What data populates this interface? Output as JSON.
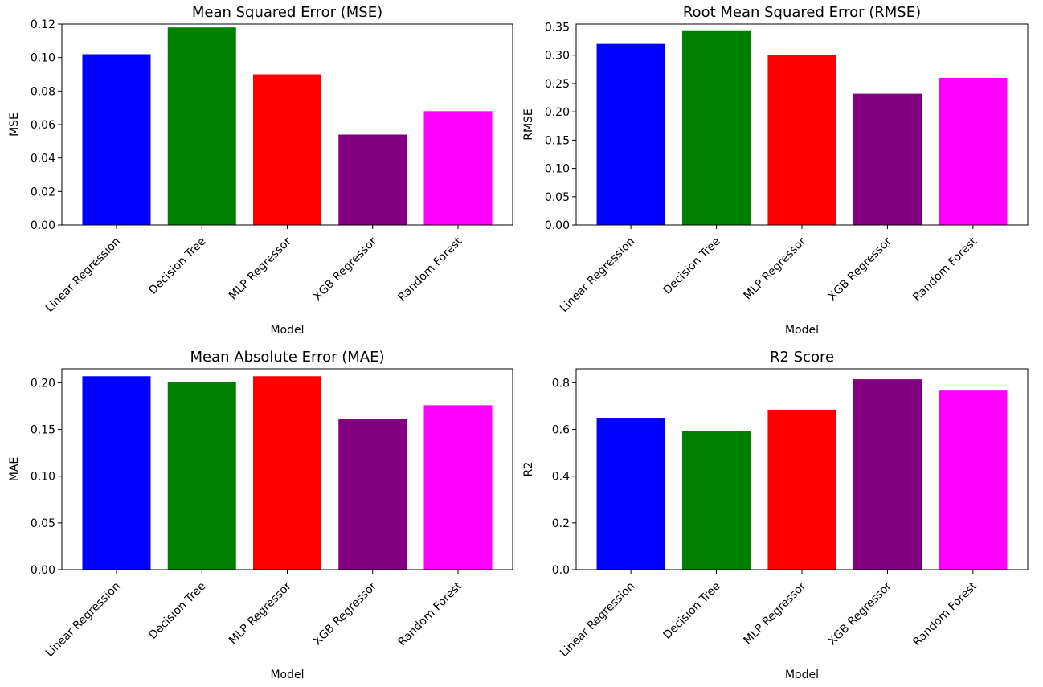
{
  "chart_data": [
    {
      "type": "bar",
      "title": "Mean Squared Error (MSE)",
      "xlabel": "Model",
      "ylabel": "MSE",
      "categories": [
        "Linear Regression",
        "Decision Tree",
        "MLP Regressor",
        "XGB Regressor",
        "Random Forest"
      ],
      "values": [
        0.102,
        0.118,
        0.09,
        0.054,
        0.068
      ],
      "colors": [
        "#0000ff",
        "#008000",
        "#ff0000",
        "#800080",
        "#ff00ff"
      ],
      "ylim": [
        0,
        0.12
      ],
      "yticks": [
        "0.00",
        "0.02",
        "0.04",
        "0.06",
        "0.08",
        "0.10",
        "0.12"
      ],
      "ytick_values": [
        0,
        0.02,
        0.04,
        0.06,
        0.08,
        0.1,
        0.12
      ],
      "grid": false,
      "legend": "none"
    },
    {
      "type": "bar",
      "title": "Root Mean Squared Error (RMSE)",
      "xlabel": "Model",
      "ylabel": "RMSE",
      "categories": [
        "Linear Regression",
        "Decision Tree",
        "MLP Regressor",
        "XGB Regressor",
        "Random Forest"
      ],
      "values": [
        0.32,
        0.344,
        0.3,
        0.232,
        0.26
      ],
      "colors": [
        "#0000ff",
        "#008000",
        "#ff0000",
        "#800080",
        "#ff00ff"
      ],
      "ylim": [
        0,
        0.355
      ],
      "yticks": [
        "0.00",
        "0.05",
        "0.10",
        "0.15",
        "0.20",
        "0.25",
        "0.30",
        "0.35"
      ],
      "ytick_values": [
        0,
        0.05,
        0.1,
        0.15,
        0.2,
        0.25,
        0.3,
        0.35
      ],
      "grid": false,
      "legend": "none"
    },
    {
      "type": "bar",
      "title": "Mean Absolute Error (MAE)",
      "xlabel": "Model",
      "ylabel": "MAE",
      "categories": [
        "Linear Regression",
        "Decision Tree",
        "MLP Regressor",
        "XGB Regressor",
        "Random Forest"
      ],
      "values": [
        0.207,
        0.201,
        0.207,
        0.161,
        0.176
      ],
      "colors": [
        "#0000ff",
        "#008000",
        "#ff0000",
        "#800080",
        "#ff00ff"
      ],
      "ylim": [
        0,
        0.215
      ],
      "yticks": [
        "0.00",
        "0.05",
        "0.10",
        "0.15",
        "0.20"
      ],
      "ytick_values": [
        0,
        0.05,
        0.1,
        0.15,
        0.2
      ],
      "grid": false,
      "legend": "none"
    },
    {
      "type": "bar",
      "title": "R2 Score",
      "xlabel": "Model",
      "ylabel": "R2",
      "categories": [
        "Linear Regression",
        "Decision Tree",
        "MLP Regressor",
        "XGB Regressor",
        "Random Forest"
      ],
      "values": [
        0.65,
        0.595,
        0.685,
        0.815,
        0.77
      ],
      "colors": [
        "#0000ff",
        "#008000",
        "#ff0000",
        "#800080",
        "#ff00ff"
      ],
      "ylim": [
        0,
        0.86
      ],
      "yticks": [
        "0.0",
        "0.2",
        "0.4",
        "0.6",
        "0.8"
      ],
      "ytick_values": [
        0,
        0.2,
        0.4,
        0.6,
        0.8
      ],
      "grid": false,
      "legend": "none"
    }
  ]
}
